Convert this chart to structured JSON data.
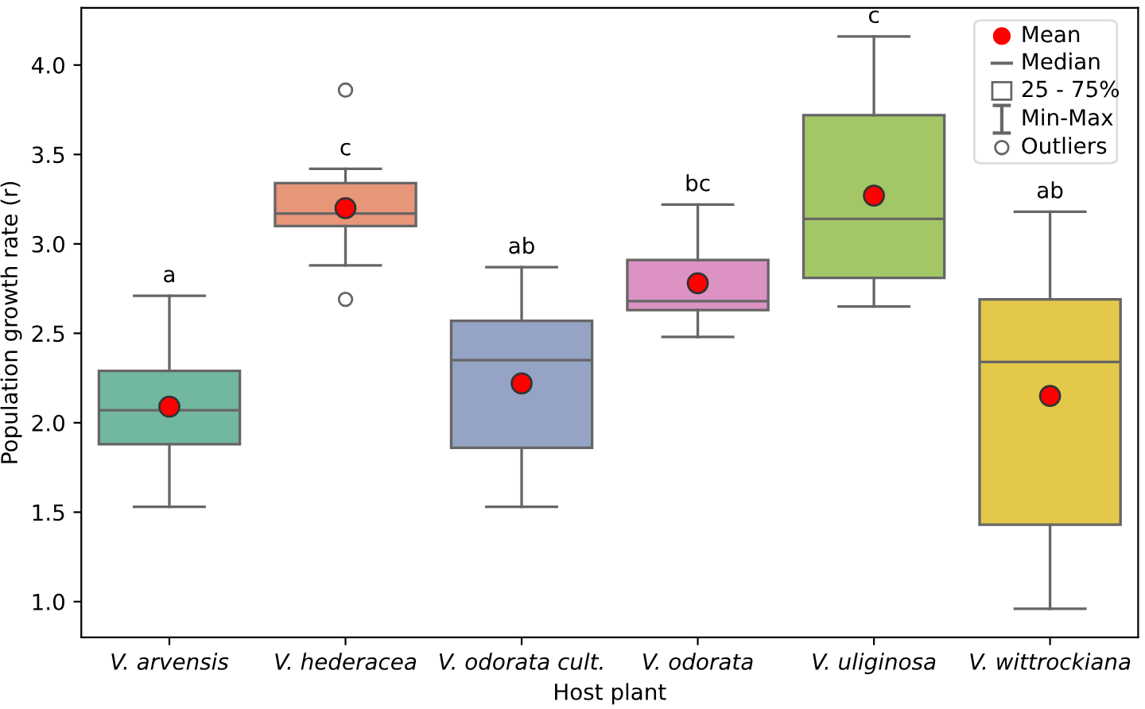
{
  "chart_data": {
    "type": "box",
    "xlabel": "Host plant",
    "ylabel": "Population growth rate (r)",
    "categories": [
      "V. arvensis",
      "V. hederacea",
      "V. odorata cult.",
      "V. odorata",
      "V. uliginosa",
      "V. wittrockiana"
    ],
    "colors": [
      "#72b8a0",
      "#e8967a",
      "#95a3c4",
      "#dc93c4",
      "#a3c766",
      "#e3c84a"
    ],
    "boxes": [
      {
        "low": 1.53,
        "q1": 1.88,
        "median": 2.07,
        "q3": 2.29,
        "high": 2.71,
        "mean": 2.09
      },
      {
        "low": 2.88,
        "q1": 3.1,
        "median": 3.17,
        "q3": 3.34,
        "high": 3.42,
        "mean": 3.2,
        "outliers": [
          3.86,
          2.69
        ]
      },
      {
        "low": 1.53,
        "q1": 1.86,
        "median": 2.35,
        "q3": 2.57,
        "high": 2.87,
        "mean": 2.22
      },
      {
        "low": 2.48,
        "q1": 2.63,
        "median": 2.68,
        "q3": 2.91,
        "high": 3.22,
        "mean": 2.78
      },
      {
        "low": 2.65,
        "q1": 2.81,
        "median": 3.14,
        "q3": 3.72,
        "high": 4.16,
        "mean": 3.27
      },
      {
        "low": 0.96,
        "q1": 1.43,
        "median": 2.34,
        "q3": 2.69,
        "high": 3.18,
        "mean": 2.15
      }
    ],
    "ylim": [
      0.8,
      4.32
    ],
    "yticks": [
      {
        "value": 1,
        "label": "1.0"
      },
      1.5,
      {
        "value": 2,
        "label": "2.0"
      },
      2.5,
      {
        "value": 3,
        "label": "3.0"
      },
      3.5,
      {
        "value": 4,
        "label": "4.0"
      }
    ],
    "grid": false,
    "annotations": [
      "Mean",
      "Median",
      "25 - 75%",
      "Min-Max",
      "Outliers",
      "a",
      "c",
      "ab",
      "bc",
      "c",
      "ab"
    ]
  }
}
